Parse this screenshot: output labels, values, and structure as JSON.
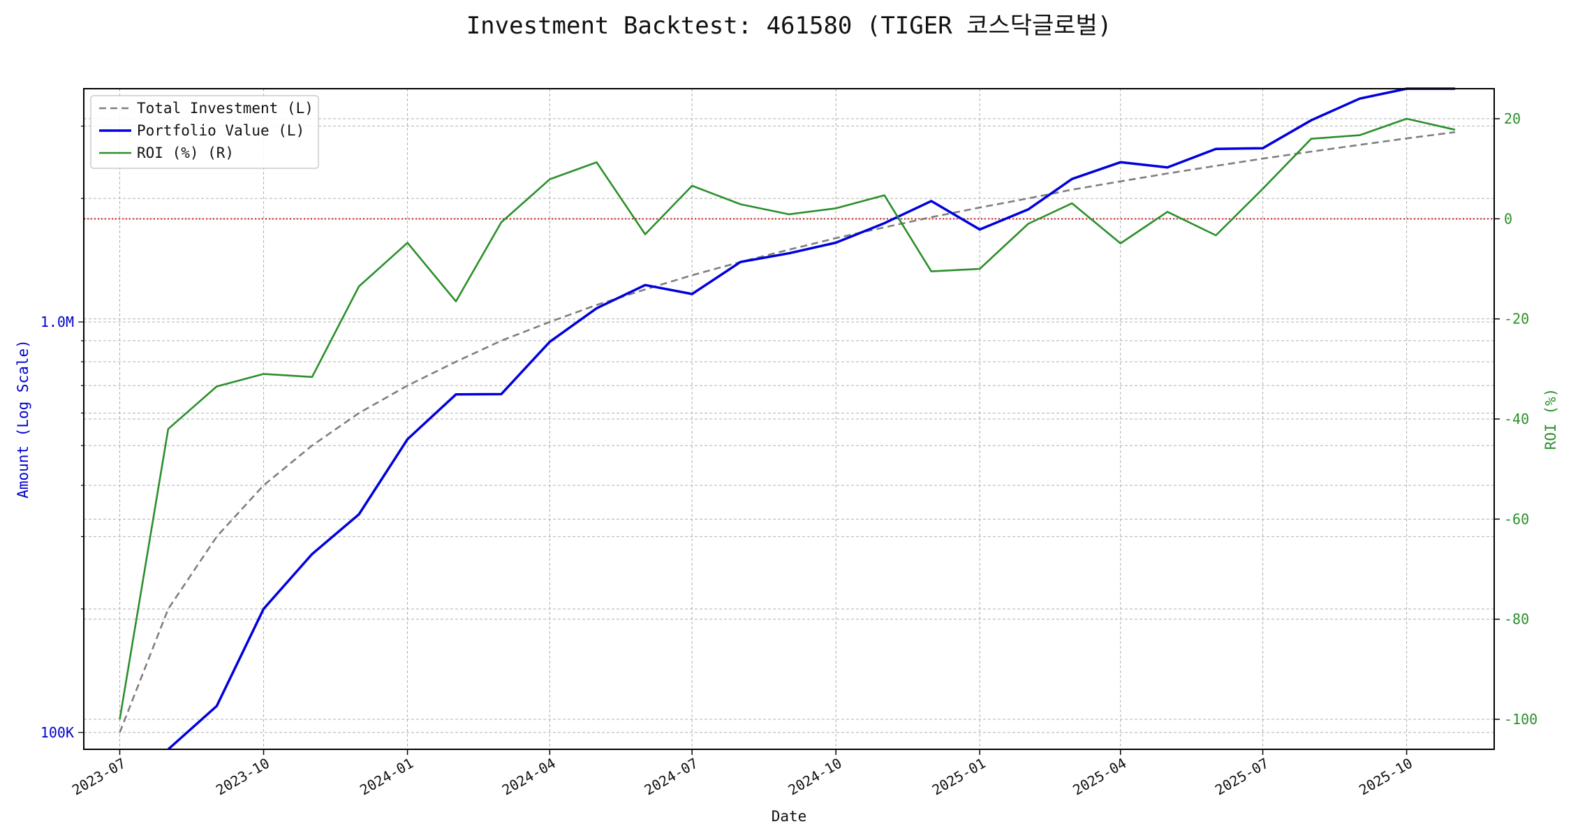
{
  "chart_data": {
    "type": "line",
    "title": "Investment Backtest: 461580 (TIGER 코스닥글로벌)",
    "xlabel": "Date",
    "ylabel_left": "Amount (Log Scale)",
    "ylabel_right": "ROI (%)",
    "left_scale": "log",
    "ylim_left": [
      91000,
      3700000
    ],
    "ylim_right": [
      -106,
      26
    ],
    "xlim": [
      "2023-06-08",
      "2025-11-26"
    ],
    "grid": true,
    "legend_position": "top-left",
    "x": [
      "2023-07-01",
      "2023-08-01",
      "2023-09-01",
      "2023-10-01",
      "2023-11-01",
      "2023-12-01",
      "2024-01-01",
      "2024-02-01",
      "2024-03-01",
      "2024-04-01",
      "2024-05-01",
      "2024-06-01",
      "2024-07-01",
      "2024-08-01",
      "2024-09-01",
      "2024-10-01",
      "2024-11-01",
      "2024-12-01",
      "2025-01-01",
      "2025-02-01",
      "2025-03-01",
      "2025-04-01",
      "2025-05-01",
      "2025-06-01",
      "2025-07-01",
      "2025-08-01",
      "2025-09-01",
      "2025-10-01",
      "2025-11-01"
    ],
    "x_ticks": [
      "2023-07",
      "2023-10",
      "2024-01",
      "2024-04",
      "2024-07",
      "2024-10",
      "2025-01",
      "2025-04",
      "2025-07",
      "2025-10"
    ],
    "left_ticks": [
      {
        "value": 100000,
        "label": "100K"
      },
      {
        "value": 1000000,
        "label": "1.0M"
      }
    ],
    "right_ticks": [
      -100,
      -80,
      -60,
      -40,
      -20,
      0,
      20
    ],
    "zero_line_roi": 0,
    "series": [
      {
        "name": "Total Investment (L)",
        "axis": "left",
        "color": "#7f7f7f",
        "style": "dashed",
        "values": [
          100000,
          200000,
          300000,
          400000,
          500000,
          600000,
          700000,
          800000,
          900000,
          1000000,
          1100000,
          1200000,
          1300000,
          1400000,
          1500000,
          1600000,
          1700000,
          1800000,
          1900000,
          2000000,
          2100000,
          2200000,
          2300000,
          2400000,
          2500000,
          2600000,
          2700000,
          2800000,
          2900000
        ]
      },
      {
        "name": "Portfolio Value (L)",
        "axis": "left",
        "color": "#0000dd",
        "style": "solid",
        "values": [
          null,
          88000,
          116000,
          200000,
          272000,
          340000,
          518000,
          666000,
          667000,
          895000,
          1080000,
          1230000,
          1170000,
          1400000,
          1470000,
          1560000,
          1740000,
          1970000,
          1680000,
          1880000,
          2230000,
          2450000,
          2380000,
          2640000,
          2650000,
          3100000,
          3500000,
          3800000,
          4100000
        ]
      },
      {
        "name": "ROI (%) (R)",
        "axis": "right",
        "color": "#2a8f2a",
        "style": "solid",
        "values": [
          -100,
          -42,
          -33.5,
          -31,
          -31.6,
          -13.5,
          -4.8,
          -16.5,
          -0.7,
          7.9,
          11.3,
          -3.1,
          6.6,
          2.9,
          0.9,
          2.1,
          4.7,
          -10.5,
          -10,
          -1,
          3.1,
          -4.9,
          1.4,
          -3.3,
          6,
          16,
          16.7,
          20,
          17.8
        ]
      }
    ]
  }
}
